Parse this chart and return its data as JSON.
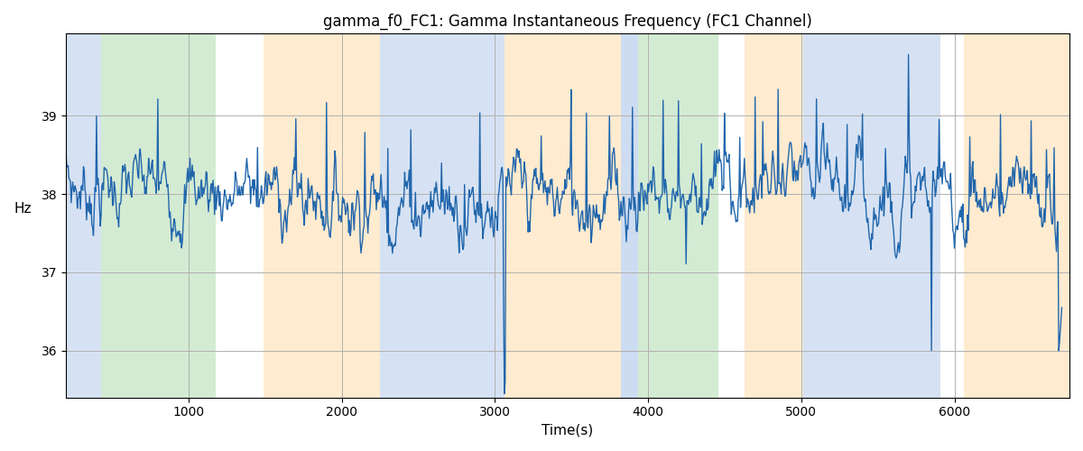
{
  "title": "gamma_f0_FC1: Gamma Instantaneous Frequency (FC1 Channel)",
  "xlabel": "Time(s)",
  "ylabel": "Hz",
  "xlim": [
    200,
    6750
  ],
  "ylim": [
    35.4,
    40.05
  ],
  "yticks": [
    36,
    37,
    38,
    39
  ],
  "xticks": [
    1000,
    2000,
    3000,
    4000,
    5000,
    6000
  ],
  "line_color": "#2166ac",
  "line_width": 1.0,
  "background_color": "#ffffff",
  "grid_color": "#b0b0b0",
  "colored_bands": [
    {
      "xmin": 200,
      "xmax": 430,
      "color": "#aec6e8",
      "alpha": 0.5
    },
    {
      "xmin": 430,
      "xmax": 1180,
      "color": "#a8d8a8",
      "alpha": 0.5
    },
    {
      "xmin": 1490,
      "xmax": 2250,
      "color": "#ffd9a0",
      "alpha": 0.5
    },
    {
      "xmin": 2250,
      "xmax": 3065,
      "color": "#aec6e8",
      "alpha": 0.5
    },
    {
      "xmin": 3065,
      "xmax": 3820,
      "color": "#ffd9a0",
      "alpha": 0.5
    },
    {
      "xmin": 3820,
      "xmax": 3935,
      "color": "#aec6e8",
      "alpha": 0.6
    },
    {
      "xmin": 3935,
      "xmax": 4460,
      "color": "#a8d8a8",
      "alpha": 0.5
    },
    {
      "xmin": 4630,
      "xmax": 5010,
      "color": "#ffd9a0",
      "alpha": 0.5
    },
    {
      "xmin": 5010,
      "xmax": 5910,
      "color": "#aec6e8",
      "alpha": 0.5
    },
    {
      "xmin": 6060,
      "xmax": 6750,
      "color": "#ffd9a0",
      "alpha": 0.5
    }
  ],
  "seed": 7,
  "n_points": 1300,
  "time_start": 200,
  "time_end": 6700,
  "base_freq": 38.0,
  "noise_std": 0.28,
  "figsize": [
    12.0,
    5.0
  ],
  "dpi": 100
}
